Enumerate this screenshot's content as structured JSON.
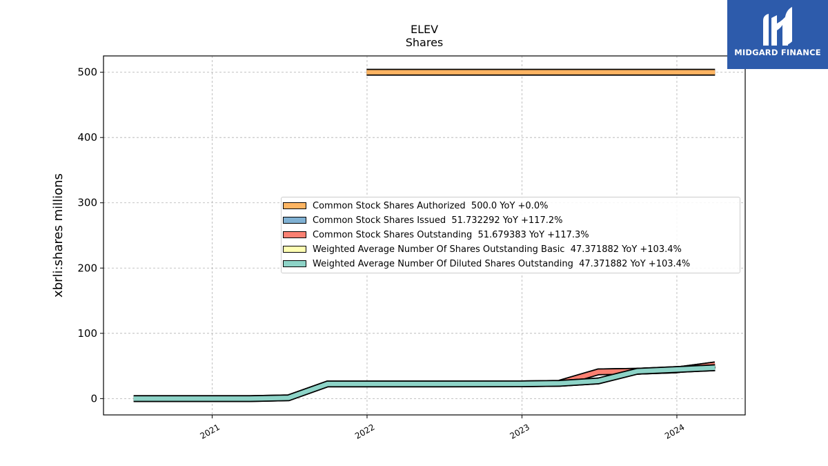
{
  "chart_data": {
    "type": "area",
    "title": "ELEV",
    "subtitle": "Shares",
    "ylabel": "xbrli:shares millions",
    "xlabel": "",
    "xlim": [
      "2020-04-20",
      "2024-06-10"
    ],
    "ylim": [
      -25,
      525
    ],
    "yticks": [
      0,
      100,
      200,
      300,
      400,
      500
    ],
    "xticks": [
      {
        "label": "2021",
        "date": "2021-01-01"
      },
      {
        "label": "2022",
        "date": "2022-01-01"
      },
      {
        "label": "2023",
        "date": "2023-01-01"
      },
      {
        "label": "2024",
        "date": "2024-01-01"
      }
    ],
    "grid": true,
    "legend_position": "center-right",
    "series": [
      {
        "name": "Common Stock Shares Authorized  500.0 YoY +0.0%",
        "color": "#fdb462",
        "points": [
          [
            "2021-12-31",
            500.0
          ],
          [
            "2024-03-31",
            500.0
          ]
        ]
      },
      {
        "name": "Common Stock Shares Issued  51.732292 YoY +117.2%",
        "color": "#80b1d3",
        "points": [
          [
            "2023-03-31",
            23.8
          ],
          [
            "2023-06-30",
            41.0
          ],
          [
            "2023-09-30",
            42.0
          ],
          [
            "2023-12-31",
            44.0
          ],
          [
            "2024-03-31",
            51.732292
          ]
        ]
      },
      {
        "name": "Common Stock Shares Outstanding  51.679383 YoY +117.3%",
        "color": "#fb8072",
        "points": [
          [
            "2023-03-31",
            23.8
          ],
          [
            "2023-06-30",
            41.0
          ],
          [
            "2023-09-30",
            42.0
          ],
          [
            "2023-12-31",
            44.0
          ],
          [
            "2024-03-31",
            51.679383
          ]
        ]
      },
      {
        "name": "Weighted Average Number Of Shares Outstanding Basic  47.371882 YoY +103.4%",
        "color": "#ffffb3",
        "points": [
          [
            "2020-06-30",
            0.0
          ],
          [
            "2021-03-31",
            0.0
          ],
          [
            "2021-06-30",
            1.2
          ],
          [
            "2021-09-30",
            22.5
          ],
          [
            "2022-03-31",
            22.5
          ],
          [
            "2022-12-31",
            22.6
          ],
          [
            "2023-03-31",
            23.3
          ],
          [
            "2023-06-30",
            27.0
          ],
          [
            "2023-09-30",
            42.0
          ],
          [
            "2023-12-31",
            44.5
          ],
          [
            "2024-03-31",
            47.371882
          ]
        ]
      },
      {
        "name": "Weighted Average Number Of Diluted Shares Outstanding  47.371882 YoY +103.4%",
        "color": "#8dd3c7",
        "points": [
          [
            "2020-06-30",
            0.0
          ],
          [
            "2021-03-31",
            0.0
          ],
          [
            "2021-06-30",
            1.2
          ],
          [
            "2021-09-30",
            22.5
          ],
          [
            "2022-03-31",
            22.5
          ],
          [
            "2022-12-31",
            22.6
          ],
          [
            "2023-03-31",
            23.3
          ],
          [
            "2023-06-30",
            27.0
          ],
          [
            "2023-09-30",
            42.0
          ],
          [
            "2023-12-31",
            44.5
          ],
          [
            "2024-03-31",
            47.371882
          ]
        ]
      }
    ]
  },
  "logo": {
    "text": "MIDGARD FINANCE"
  }
}
